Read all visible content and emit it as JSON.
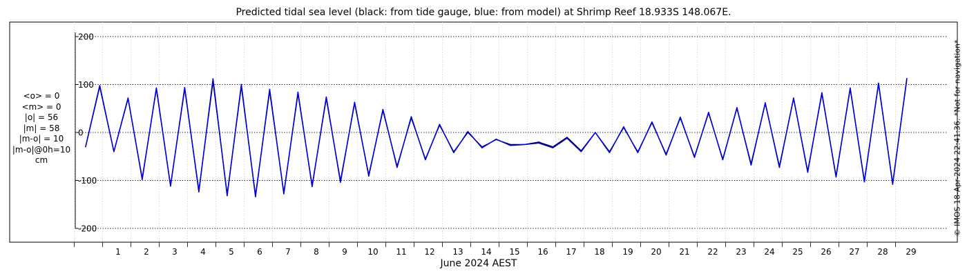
{
  "chart_data": {
    "type": "line",
    "title": "Predicted tidal sea level (black: from tide gauge, blue: from model) at Shrimp Reef 18.933S 148.067E.",
    "xlabel": "June 2024 AEST",
    "ylabel": "",
    "xlim": [
      0.4,
      30.3
    ],
    "ylim": [
      -220,
      230
    ],
    "y_ticks": [
      200,
      100,
      0,
      -100,
      -200
    ],
    "x_tick_labels": [
      "1",
      "2",
      "3",
      "4",
      "5",
      "6",
      "7",
      "8",
      "9",
      "10",
      "11",
      "12",
      "13",
      "14",
      "15",
      "16",
      "17",
      "18",
      "19",
      "20",
      "21",
      "22",
      "23",
      "24",
      "25",
      "26",
      "27",
      "28",
      "29"
    ],
    "grid": true,
    "stats": [
      "<o> = 0",
      "<m> = 0",
      "|o| = 56",
      "|m| = 58",
      "|m-o| = 10",
      "|m-o|@0h=10",
      "cm"
    ],
    "series": [
      {
        "name": "tide gauge",
        "color": "#000000",
        "x": [
          0.9,
          1.4,
          1.9,
          2.4,
          2.9,
          3.4,
          3.9,
          4.4,
          4.9,
          5.4,
          5.9,
          6.4,
          6.9,
          7.4,
          7.9,
          8.4,
          8.9,
          9.4,
          9.9,
          10.4,
          10.9,
          11.4,
          11.9,
          12.4,
          12.9,
          13.4,
          13.9,
          14.4,
          14.9,
          15.4,
          15.9,
          16.4,
          16.9,
          17.4,
          17.9,
          18.4,
          18.9,
          19.4,
          19.9,
          20.4,
          20.9,
          21.4,
          21.9,
          22.4,
          22.9,
          23.4,
          23.9,
          24.4,
          24.9,
          25.4,
          25.9,
          26.4,
          26.9,
          27.4,
          27.9,
          28.4,
          28.9,
          29.4,
          29.9
        ],
        "y": [
          -30,
          95,
          -40,
          70,
          -95,
          90,
          -110,
          90,
          -120,
          105,
          -128,
          95,
          -130,
          85,
          -125,
          80,
          -110,
          70,
          -100,
          60,
          -88,
          45,
          -70,
          30,
          -55,
          15,
          -40,
          0,
          -30,
          -15,
          -25,
          -25,
          -20,
          -30,
          -10,
          -38,
          0,
          -40,
          10,
          -40,
          20,
          -45,
          30,
          -50,
          40,
          -55,
          50,
          -65,
          60,
          -70,
          70,
          -80,
          80,
          -90,
          90,
          -100,
          100,
          -105,
          110
        ]
      },
      {
        "name": "model",
        "color": "#0000dd",
        "x": [
          0.9,
          1.4,
          1.9,
          2.4,
          2.9,
          3.4,
          3.9,
          4.4,
          4.9,
          5.4,
          5.9,
          6.4,
          6.9,
          7.4,
          7.9,
          8.4,
          8.9,
          9.4,
          9.9,
          10.4,
          10.9,
          11.4,
          11.9,
          12.4,
          12.9,
          13.4,
          13.9,
          14.4,
          14.9,
          15.4,
          15.9,
          16.4,
          16.9,
          17.4,
          17.9,
          18.4,
          18.9,
          19.4,
          19.9,
          20.4,
          20.9,
          21.4,
          21.9,
          22.4,
          22.9,
          23.4,
          23.9,
          24.4,
          24.9,
          25.4,
          25.9,
          26.4,
          26.9,
          27.4,
          27.9,
          28.4,
          28.9,
          29.4,
          29.9
        ],
        "y": [
          -30,
          98,
          -40,
          72,
          -98,
          93,
          -112,
          94,
          -124,
          112,
          -132,
          100,
          -134,
          90,
          -128,
          84,
          -113,
          74,
          -104,
          63,
          -91,
          48,
          -73,
          33,
          -57,
          17,
          -42,
          2,
          -32,
          -14,
          -27,
          -25,
          -22,
          -32,
          -12,
          -40,
          0,
          -42,
          12,
          -42,
          22,
          -47,
          32,
          -52,
          42,
          -57,
          52,
          -68,
          62,
          -73,
          72,
          -83,
          83,
          -93,
          93,
          -103,
          103,
          -108,
          113
        ]
      }
    ]
  },
  "credit": "© IMOS 18-Apr-2024 22:41:36. *Not for navigation*"
}
